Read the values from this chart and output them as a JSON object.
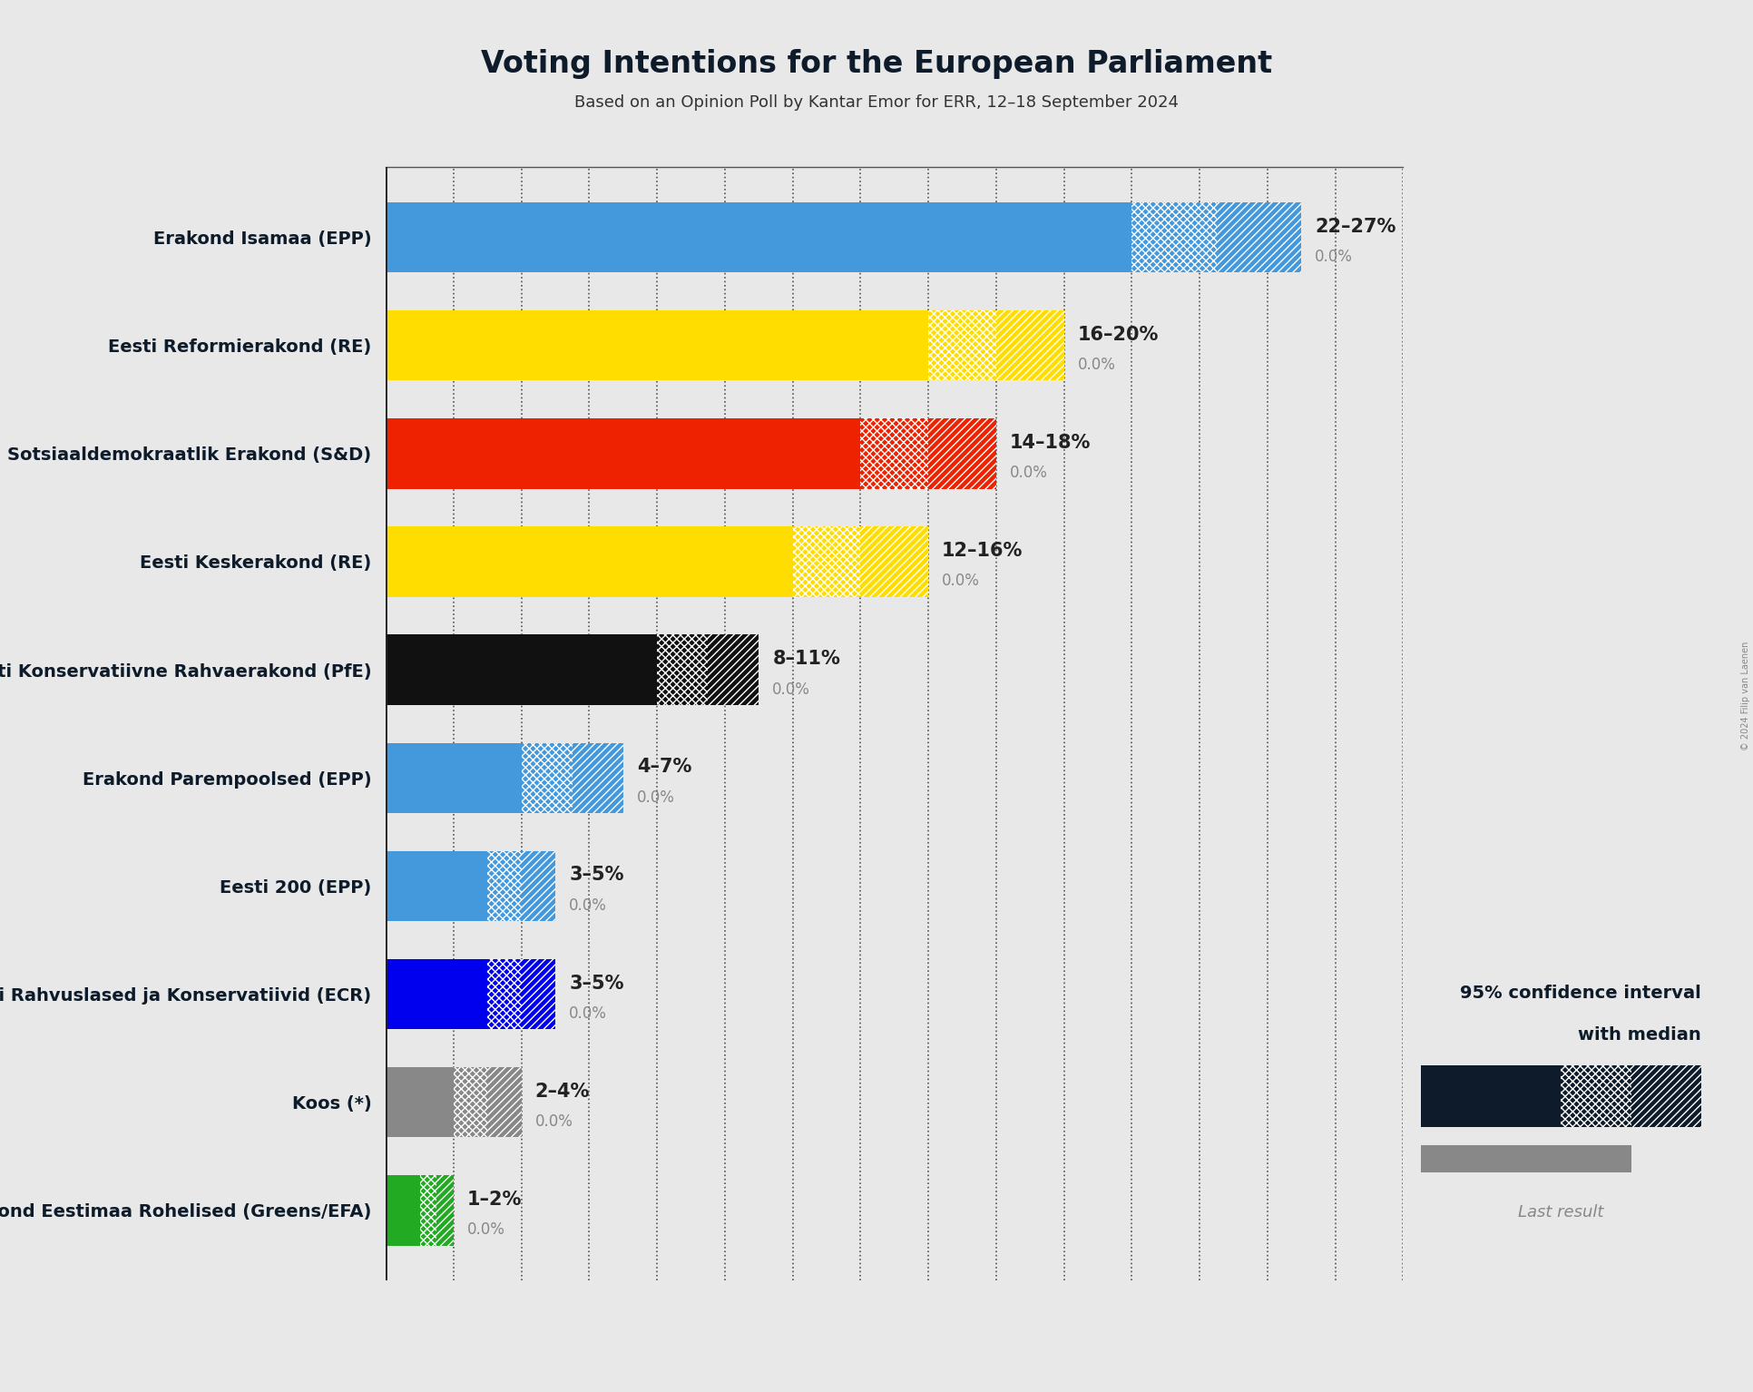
{
  "title": "Voting Intentions for the European Parliament",
  "subtitle": "Based on an Opinion Poll by Kantar Emor for ERR, 12–18 September 2024",
  "copyright": "© 2024 Filip van Laenen",
  "parties": [
    {
      "name": "Erakond Isamaa (EPP)",
      "low": 22,
      "median": 24.5,
      "high": 27,
      "last": 0.0,
      "color": "#4499DD"
    },
    {
      "name": "Eesti Reformierakond (RE)",
      "low": 16,
      "median": 18,
      "high": 20,
      "last": 0.0,
      "color": "#FFDD00"
    },
    {
      "name": "Sotsiaaldemokraatlik Erakond (S&D)",
      "low": 14,
      "median": 16,
      "high": 18,
      "last": 0.0,
      "color": "#EE2200"
    },
    {
      "name": "Eesti Keskerakond (RE)",
      "low": 12,
      "median": 14,
      "high": 16,
      "last": 0.0,
      "color": "#FFDD00"
    },
    {
      "name": "Eesti Konservatiivne Rahvaerakond (PfE)",
      "low": 8,
      "median": 9.5,
      "high": 11,
      "last": 0.0,
      "color": "#111111"
    },
    {
      "name": "Erakond Parempoolsed (EPP)",
      "low": 4,
      "median": 5.5,
      "high": 7,
      "last": 0.0,
      "color": "#4499DD"
    },
    {
      "name": "Eesti 200 (EPP)",
      "low": 3,
      "median": 4,
      "high": 5,
      "last": 0.0,
      "color": "#4499DD"
    },
    {
      "name": "Eesti Rahvuslased ja Konservatiivid (ECR)",
      "low": 3,
      "median": 4,
      "high": 5,
      "last": 0.0,
      "color": "#0000EE"
    },
    {
      "name": "Koos (*)",
      "low": 2,
      "median": 3,
      "high": 4,
      "last": 0.0,
      "color": "#888888"
    },
    {
      "name": "Erakond Eestimaa Rohelised (Greens/EFA)",
      "low": 1,
      "median": 1.5,
      "high": 2,
      "last": 0.0,
      "color": "#22AA22"
    }
  ],
  "ranges": [
    "22–27%",
    "16–20%",
    "14–18%",
    "12–16%",
    "8–11%",
    "4–7%",
    "3–5%",
    "3–5%",
    "2–4%",
    "1–2%"
  ],
  "xlim": [
    0,
    30
  ],
  "background_color": "#E8E8E8",
  "bar_height": 0.65,
  "title_color": "#0D1B2A",
  "label_color": "#0D1B2A",
  "legend_color": "#0D1B2A",
  "legend_text1": "95% confidence interval",
  "legend_text2": "with median",
  "legend_last": "Last result",
  "legend_bar_color": "#0D1B2A",
  "legend_last_color": "#888888"
}
